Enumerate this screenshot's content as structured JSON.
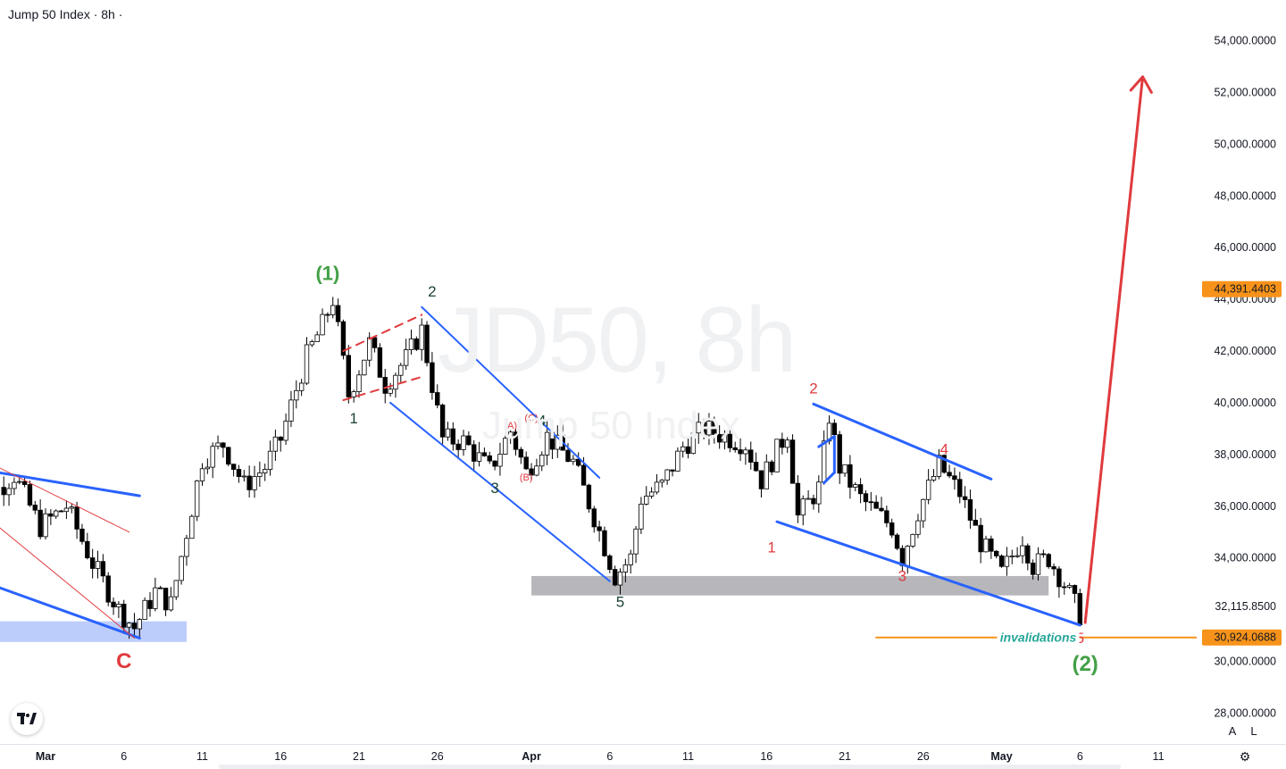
{
  "header": {
    "title": "Jump 50 Index · 8h ·"
  },
  "watermark": {
    "symbol": "JD50, 8h",
    "name": "Jump 50 Index"
  },
  "icons": {
    "logo": "tradingview-logo-icon",
    "settings": "gear-icon"
  },
  "axis_buttons": {
    "auto": "A",
    "log": "L"
  },
  "colors": {
    "bull": "#ffffff",
    "bear": "#000000",
    "blue": "#2962ff",
    "red": "#e03a3e",
    "green": "#43a047",
    "teal": "#26a69a",
    "orange": "#f7931a",
    "gray_zone": "#9e9ea4",
    "blue_zone": "#bdcdfb"
  },
  "chart_data": {
    "type": "candlestick",
    "title": "Jump 50 Index · 8h",
    "ylim": [
      27000,
      55500
    ],
    "y_ticks": [
      {
        "value": 54000,
        "label": "54,000.0000"
      },
      {
        "value": 52000,
        "label": "52,000.0000"
      },
      {
        "value": 50000,
        "label": "50,000.0000"
      },
      {
        "value": 48000,
        "label": "48,000.0000"
      },
      {
        "value": 46000,
        "label": "46,000.0000"
      },
      {
        "value": 44000,
        "label": "44,000.0000"
      },
      {
        "value": 42000,
        "label": "42,000.0000"
      },
      {
        "value": 40000,
        "label": "40,000.0000"
      },
      {
        "value": 38000,
        "label": "38,000.0000"
      },
      {
        "value": 36000,
        "label": "36,000.0000"
      },
      {
        "value": 34000,
        "label": "34,000.0000"
      },
      {
        "value": 32115.85,
        "label": "32,115.8500"
      },
      {
        "value": 30000,
        "label": "30,000.0000"
      },
      {
        "value": 28000,
        "label": "28,000.0000"
      }
    ],
    "x_ticks": [
      {
        "date": "2024-03-01",
        "label": "Mar",
        "bold": true
      },
      {
        "date": "2024-03-06",
        "label": "6"
      },
      {
        "date": "2024-03-11",
        "label": "11"
      },
      {
        "date": "2024-03-16",
        "label": "16"
      },
      {
        "date": "2024-03-21",
        "label": "21"
      },
      {
        "date": "2024-03-26",
        "label": "26"
      },
      {
        "date": "2024-04-01",
        "label": "Apr",
        "bold": true
      },
      {
        "date": "2024-04-06",
        "label": "6"
      },
      {
        "date": "2024-04-11",
        "label": "11"
      },
      {
        "date": "2024-04-16",
        "label": "16"
      },
      {
        "date": "2024-04-21",
        "label": "21"
      },
      {
        "date": "2024-04-26",
        "label": "26"
      },
      {
        "date": "2024-05-01",
        "label": "May",
        "bold": true
      },
      {
        "date": "2024-05-06",
        "label": "6"
      },
      {
        "date": "2024-05-11",
        "label": "11"
      }
    ],
    "price_tags": [
      {
        "value": 44391.4403,
        "label": "44,391.4403",
        "color": "#f7931a"
      },
      {
        "value": 30924.0688,
        "label": "30,924.0688",
        "color": "#f7931a"
      }
    ],
    "close_path": [
      [
        "2024-02-25T00:00",
        39000
      ],
      [
        "2024-02-26T16:00",
        36500
      ],
      [
        "2024-02-28T00:00",
        37200
      ],
      [
        "2024-02-29T16:00",
        35200
      ],
      [
        "2024-03-02T08:00",
        36000
      ],
      [
        "2024-03-04T00:00",
        33800
      ],
      [
        "2024-03-05T16:00",
        32000
      ],
      [
        "2024-03-06T16:00",
        31300
      ],
      [
        "2024-03-08T00:00",
        32700
      ],
      [
        "2024-03-09T00:00",
        32200
      ],
      [
        "2024-03-10T00:00",
        35000
      ],
      [
        "2024-03-11T00:00",
        37800
      ],
      [
        "2024-03-12T08:00",
        38400
      ],
      [
        "2024-03-13T16:00",
        36800
      ],
      [
        "2024-03-15T00:00",
        37500
      ],
      [
        "2024-03-16T00:00",
        38600
      ],
      [
        "2024-03-17T16:00",
        41800
      ],
      [
        "2024-03-18T16:00",
        43000
      ],
      [
        "2024-03-19T08:00",
        44000
      ],
      [
        "2024-03-20T08:00",
        40300
      ],
      [
        "2024-03-21T16:00",
        42300
      ],
      [
        "2024-03-22T16:00",
        40700
      ],
      [
        "2024-03-24T00:00",
        41700
      ],
      [
        "2024-03-25T00:00",
        42800
      ],
      [
        "2024-03-26T08:00",
        38600
      ],
      [
        "2024-03-27T16:00",
        38500
      ],
      [
        "2024-03-29T08:00",
        37400
      ],
      [
        "2024-03-30T16:00",
        38900
      ],
      [
        "2024-03-31T16:00",
        37300
      ],
      [
        "2024-04-02T00:00",
        38700
      ],
      [
        "2024-04-03T16:00",
        37700
      ],
      [
        "2024-04-05T00:00",
        35600
      ],
      [
        "2024-04-06T08:00",
        33300
      ],
      [
        "2024-04-07T08:00",
        34000
      ],
      [
        "2024-04-08T00:00",
        36300
      ],
      [
        "2024-04-09T08:00",
        36800
      ],
      [
        "2024-04-10T16:00",
        38300
      ],
      [
        "2024-04-12T00:00",
        39000
      ],
      [
        "2024-04-13T08:00",
        38700
      ],
      [
        "2024-04-14T16:00",
        38400
      ],
      [
        "2024-04-15T16:00",
        37000
      ],
      [
        "2024-04-17T08:00",
        38900
      ],
      [
        "2024-04-18T00:00",
        35600
      ],
      [
        "2024-04-19T08:00",
        36700
      ],
      [
        "2024-04-20T00:00",
        39500
      ],
      [
        "2024-04-20T16:00",
        37500
      ],
      [
        "2024-04-22T00:00",
        36300
      ],
      [
        "2024-04-24T00:00",
        35200
      ],
      [
        "2024-04-24T16:00",
        34000
      ],
      [
        "2024-04-25T16:00",
        35800
      ],
      [
        "2024-04-27T00:00",
        37600
      ],
      [
        "2024-04-28T08:00",
        36500
      ],
      [
        "2024-04-29T16:00",
        34600
      ],
      [
        "2024-05-01T00:00",
        33400
      ],
      [
        "2024-05-02T08:00",
        34800
      ],
      [
        "2024-05-03T00:00",
        33700
      ],
      [
        "2024-05-04T00:00",
        34000
      ],
      [
        "2024-05-05T00:00",
        33000
      ],
      [
        "2024-05-06T00:00",
        31800
      ]
    ],
    "overlays": {
      "zones": [
        {
          "name": "demand-zone-blue",
          "x": [
            "2024-02-25T00:00",
            "2024-03-10T00:00"
          ],
          "y": [
            30750,
            31550
          ],
          "color": "#bdcdfb"
        },
        {
          "name": "support-zone-gray",
          "x": [
            "2024-04-01T00:00",
            "2024-05-04T00:00"
          ],
          "y": [
            32550,
            33300
          ],
          "color": "#9e9ea4"
        }
      ],
      "lines": [
        {
          "name": "channel-upper-1",
          "from": [
            "2024-02-25T00:00",
            37500
          ],
          "to": [
            "2024-03-07T00:00",
            36400
          ],
          "color": "#2962ff",
          "width": 3
        },
        {
          "name": "channel-lower-1",
          "from": [
            "2024-02-25T00:00",
            33300
          ],
          "to": [
            "2024-03-07T00:00",
            30900
          ],
          "color": "#2962ff",
          "width": 3
        },
        {
          "name": "wedge-red-upper",
          "from": [
            "2024-02-26T00:00",
            37800
          ],
          "to": [
            "2024-03-06T08:00",
            35000
          ],
          "color": "#e03a3e",
          "width": 1
        },
        {
          "name": "wedge-red-lower",
          "from": [
            "2024-02-25T00:00",
            36200
          ],
          "to": [
            "2024-03-06T16:00",
            30900
          ],
          "color": "#e03a3e",
          "width": 1
        },
        {
          "name": "flag-red-upper",
          "from": [
            "2024-03-20T00:00",
            42000
          ],
          "to": [
            "2024-03-25T00:00",
            43400
          ],
          "color": "#e03a3e",
          "width": 2,
          "dash": true
        },
        {
          "name": "flag-red-lower",
          "from": [
            "2024-03-20T00:00",
            40100
          ],
          "to": [
            "2024-03-25T00:00",
            41000
          ],
          "color": "#e03a3e",
          "width": 2,
          "dash": true
        },
        {
          "name": "channel-upper-2",
          "from": [
            "2024-03-25T00:00",
            43700
          ],
          "to": [
            "2024-04-05T08:00",
            37100
          ],
          "color": "#2962ff",
          "width": 2
        },
        {
          "name": "channel-lower-2",
          "from": [
            "2024-03-23T00:00",
            40000
          ],
          "to": [
            "2024-04-06T00:00",
            33100
          ],
          "color": "#2962ff",
          "width": 2
        },
        {
          "name": "diagonal-upper",
          "from": [
            "2024-04-19T00:00",
            39950
          ],
          "to": [
            "2024-04-30T08:00",
            37050
          ],
          "color": "#2962ff",
          "width": 3
        },
        {
          "name": "diagonal-lower",
          "from": [
            "2024-04-16T16:00",
            35400
          ],
          "to": [
            "2024-05-06T00:00",
            31400
          ],
          "color": "#2962ff",
          "width": 3
        },
        {
          "name": "mini-triangle-1",
          "from": [
            "2024-04-19T08:00",
            38300
          ],
          "to": [
            "2024-04-20T08:00",
            38700
          ],
          "color": "#2962ff",
          "width": 3
        },
        {
          "name": "mini-triangle-2",
          "from": [
            "2024-04-20T08:00",
            38700
          ],
          "to": [
            "2024-04-20T08:00",
            37300
          ],
          "color": "#2962ff",
          "width": 3
        },
        {
          "name": "mini-triangle-3",
          "from": [
            "2024-04-19T16:00",
            36900
          ],
          "to": [
            "2024-04-20T08:00",
            37300
          ],
          "color": "#2962ff",
          "width": 3
        },
        {
          "name": "invalidation-line",
          "from": [
            "2024-04-23T00:00",
            30924.0688
          ],
          "to": [
            "2024-05-14T00:00",
            30924.0688
          ],
          "color": "#f7931a",
          "width": 2
        },
        {
          "name": "projection-arrow",
          "from": [
            "2024-05-06T08:00",
            31500
          ],
          "to": [
            "2024-05-10T00:00",
            52600
          ],
          "color": "#e03a3e",
          "width": 3,
          "arrow": true
        }
      ],
      "labels": [
        {
          "text": "C",
          "at": [
            "2024-03-06T00:00",
            30000
          ],
          "color": "#e03a3e",
          "size": 24,
          "bold": true
        },
        {
          "text": "(1)",
          "at": [
            "2024-03-19T00:00",
            45000
          ],
          "color": "#43a047",
          "size": 22,
          "bold": true
        },
        {
          "text": "1",
          "at": [
            "2024-03-20T16:00",
            39400
          ],
          "color": "#1b4332",
          "size": 17
        },
        {
          "text": "2",
          "at": [
            "2024-03-25T16:00",
            44300
          ],
          "color": "#1b4332",
          "size": 17
        },
        {
          "text": "3",
          "at": [
            "2024-03-29T16:00",
            36700
          ],
          "color": "#1b4332",
          "size": 17
        },
        {
          "text": "4",
          "at": [
            "2024-04-01T16:00",
            39300
          ],
          "color": "#1b4332",
          "size": 17
        },
        {
          "text": "5",
          "at": [
            "2024-04-06T16:00",
            32300
          ],
          "color": "#1b4332",
          "size": 17
        },
        {
          "text": "(A)",
          "at": [
            "2024-03-30T16:00",
            39100
          ],
          "color": "#e03a3e",
          "size": 11
        },
        {
          "text": "(B)",
          "at": [
            "2024-03-31T16:00",
            37100
          ],
          "color": "#e03a3e",
          "size": 11
        },
        {
          "text": "(C)",
          "at": [
            "2024-04-01T00:00",
            39400
          ],
          "color": "#e03a3e",
          "size": 11
        },
        {
          "text": "1",
          "at": [
            "2024-04-16T08:00",
            34400
          ],
          "color": "#e03a3e",
          "size": 17
        },
        {
          "text": "2",
          "at": [
            "2024-04-19T00:00",
            40550
          ],
          "color": "#e03a3e",
          "size": 17
        },
        {
          "text": "3",
          "at": [
            "2024-04-24T16:00",
            33300
          ],
          "color": "#e03a3e",
          "size": 17
        },
        {
          "text": "4",
          "at": [
            "2024-04-27T08:00",
            38200
          ],
          "color": "#e03a3e",
          "size": 17
        },
        {
          "text": "5",
          "at": [
            "2024-05-06T00:00",
            30900
          ],
          "color": "#e03a3e",
          "size": 17
        },
        {
          "text": "(2)",
          "at": [
            "2024-05-06T08:00",
            29900
          ],
          "color": "#43a047",
          "size": 24,
          "bold": true
        },
        {
          "text": "invalidations",
          "at": [
            "2024-05-03T08:00",
            30924
          ],
          "color": "#26a69a",
          "size": 14,
          "bold": true,
          "italic": true
        }
      ]
    }
  }
}
